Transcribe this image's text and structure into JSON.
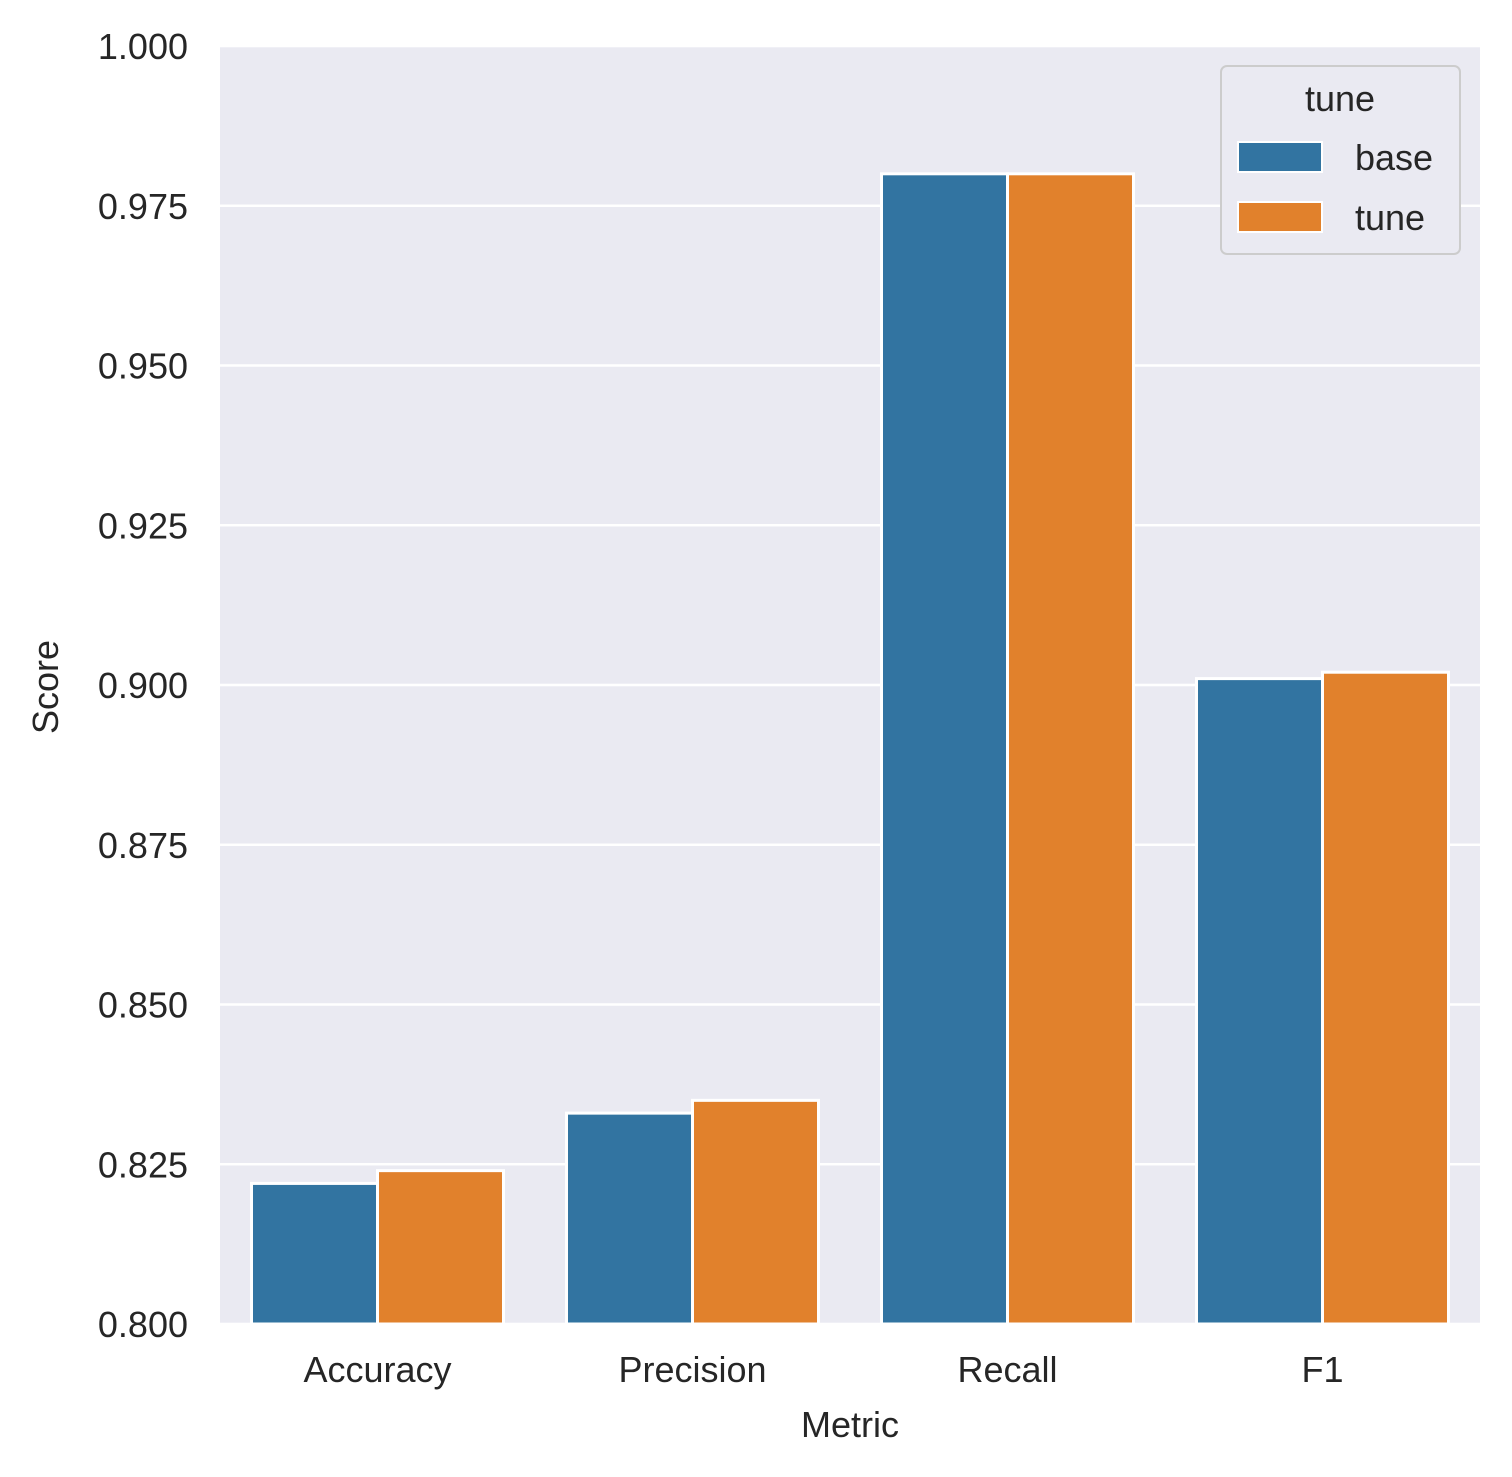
{
  "chart_data": {
    "type": "bar",
    "xlabel": "Metric",
    "ylabel": "Score",
    "categories": [
      "Accuracy",
      "Precision",
      "Recall",
      "F1"
    ],
    "series": [
      {
        "name": "base",
        "color": "#3274a1",
        "values": [
          0.822,
          0.833,
          0.98,
          0.901
        ]
      },
      {
        "name": "tune",
        "color": "#e1812c",
        "values": [
          0.824,
          0.835,
          0.98,
          0.902
        ]
      }
    ],
    "ylim": [
      0.8,
      1.0
    ],
    "yticks": [
      "0.800",
      "0.825",
      "0.850",
      "0.875",
      "0.900",
      "0.925",
      "0.950",
      "0.975",
      "1.000"
    ],
    "grid": true,
    "background_color": "#eaeaf2",
    "legend": {
      "title": "tune",
      "placement": "top-right"
    }
  }
}
